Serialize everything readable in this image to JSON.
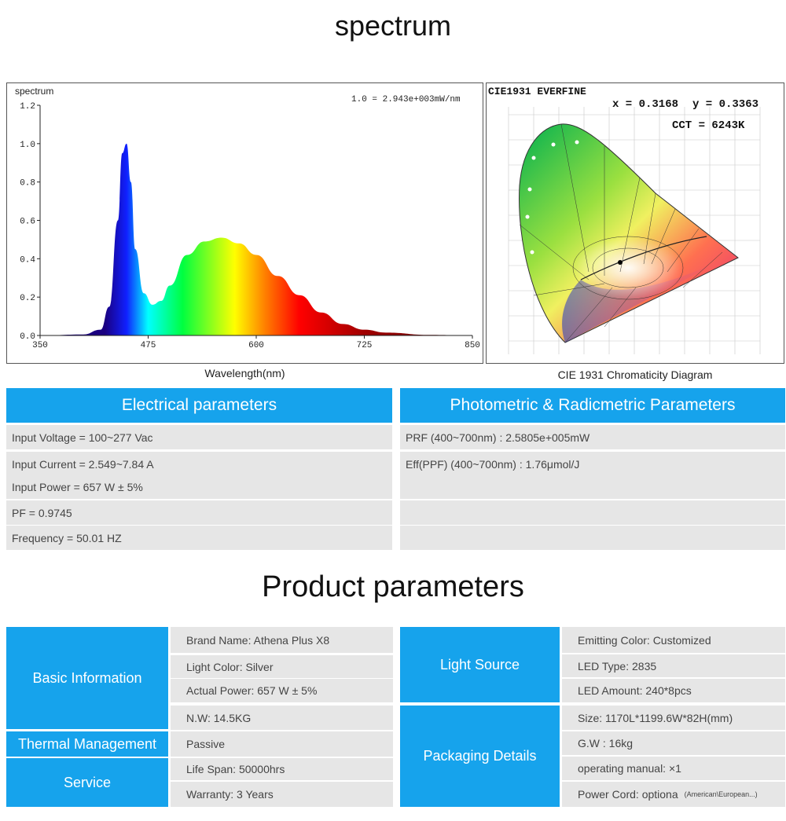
{
  "spectrum_section": {
    "title": "spectrum",
    "chart_title": "spectrum",
    "scale_note": "1.0 = 2.943e+003mW/nm",
    "x_caption": "Wavelength(nm)",
    "cie_caption": "CIE 1931 Chromaticity Diagram"
  },
  "chart_data": {
    "type": "area",
    "title": "spectrum",
    "xlabel": "Wavelength(nm)",
    "ylabel": "",
    "xlim": [
      350,
      850
    ],
    "ylim": [
      0,
      1.2
    ],
    "x_ticks": [
      "350",
      "475",
      "600",
      "725",
      "850"
    ],
    "y_ticks": [
      "0.0",
      "0.2",
      "0.4",
      "0.6",
      "0.8",
      "1.0",
      "1.2"
    ],
    "x": [
      350,
      400,
      420,
      430,
      440,
      445,
      450,
      455,
      460,
      470,
      480,
      490,
      500,
      520,
      540,
      560,
      580,
      600,
      625,
      650,
      675,
      700,
      725,
      750,
      800,
      850
    ],
    "y": [
      0,
      0.005,
      0.03,
      0.15,
      0.6,
      0.95,
      1.0,
      0.8,
      0.45,
      0.22,
      0.16,
      0.18,
      0.26,
      0.42,
      0.49,
      0.51,
      0.48,
      0.42,
      0.31,
      0.21,
      0.12,
      0.06,
      0.03,
      0.015,
      0.003,
      0
    ]
  },
  "cie": {
    "brand": "CIE1931   EVERFINE",
    "x": "x = 0.3168",
    "y": "y = 0.3363",
    "cct": "CCT = 6243K"
  },
  "electrical": {
    "header": "Electrical parameters",
    "rows": [
      "Input Voltage = 100~277 Vac",
      "Input Current = 2.549~7.84 A",
      "Input Power = 657 W ± 5%",
      "PF = 0.9745",
      "Frequency = 50.01 HZ"
    ]
  },
  "photometric": {
    "header": "Photometric & Radicmetric Parameters",
    "rows": [
      "PRF (400~700nm) : 2.5805e+005mW",
      "Eff(PPF) (400~700nm) : 1.76μmol/J",
      "",
      "",
      ""
    ]
  },
  "product": {
    "title": "Product parameters",
    "basic_info": {
      "label": "Basic Information",
      "rows": [
        "Brand Name: Athena Plus X8",
        "Light Color: Silver",
        "Actual Power: 657 W ± 5%",
        "N.W: 14.5KG"
      ]
    },
    "thermal": {
      "label": "Thermal Management",
      "value": "Passive"
    },
    "service": {
      "label": "Service",
      "rows": [
        "Life Span: 50000hrs",
        "Warranty: 3 Years"
      ]
    },
    "light_source": {
      "label": "Light Source",
      "rows": [
        "Emitting Color: Customized",
        "LED Type: 2835",
        "LED Amount: 240*8pcs"
      ]
    },
    "packaging": {
      "label": "Packaging Details",
      "rows": [
        "Size: 1170L*1199.6W*82H(mm)",
        "G.W : 16kg",
        "operating manual: ×1",
        "Power Cord: optiona"
      ],
      "cord_note": "(American\\European...)"
    }
  }
}
